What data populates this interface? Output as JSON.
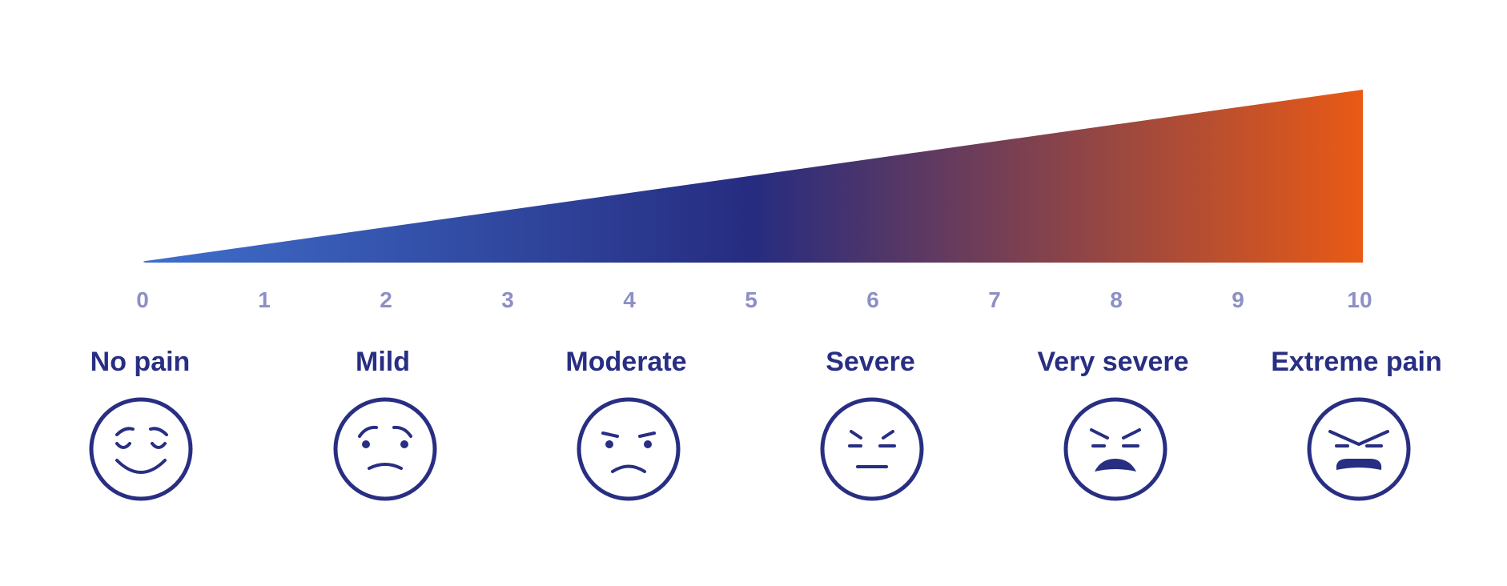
{
  "scale": {
    "min": 0,
    "max": 10,
    "tick_labels": [
      "0",
      "1",
      "2",
      "3",
      "4",
      "5",
      "6",
      "7",
      "8",
      "9",
      "10"
    ],
    "gradient_colors": {
      "start": "#3f6fcc",
      "middle": "#262c80",
      "end": "#e95a15"
    }
  },
  "levels": [
    {
      "label": "No pain",
      "value": 0,
      "icon": "relaxed-face-icon"
    },
    {
      "label": "Mild",
      "value": 2,
      "icon": "slightly-sad-face-icon"
    },
    {
      "label": "Moderate",
      "value": 4,
      "icon": "frowning-face-icon"
    },
    {
      "label": "Severe",
      "value": 6,
      "icon": "grimacing-face-icon"
    },
    {
      "label": "Very severe",
      "value": 8,
      "icon": "pained-face-icon"
    },
    {
      "label": "Extreme pain",
      "value": 10,
      "icon": "anguished-face-icon"
    }
  ],
  "colors": {
    "text": "#282e82",
    "tick_text": "#8c90c4",
    "face_stroke": "#282e82"
  }
}
